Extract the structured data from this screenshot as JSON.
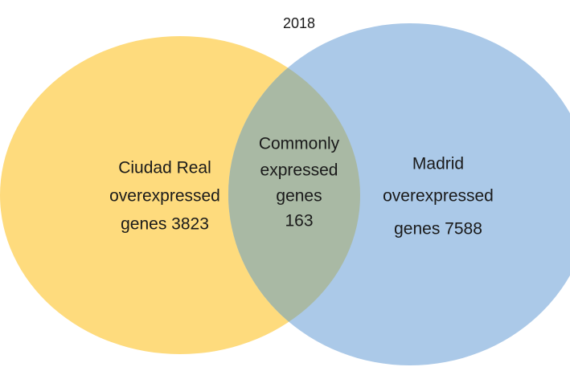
{
  "title": "2018",
  "sets": [
    {
      "lines": [
        "Ciudad Real",
        "overexpressed",
        "genes 3823"
      ]
    },
    {
      "lines": [
        "Madrid",
        "overexpressed",
        "genes 7588"
      ]
    }
  ],
  "intersection": {
    "lines": [
      "Commonly",
      "expressed",
      "genes",
      "163"
    ]
  }
}
